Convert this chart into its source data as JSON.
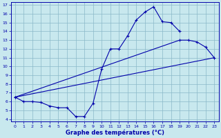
{
  "xlabel": "Graphe des températures (°C)",
  "background_color": "#c8e8ee",
  "grid_color": "#8ab8c8",
  "line_color": "#0000aa",
  "xmin": 0,
  "xmax": 23,
  "ymin": 4,
  "ymax": 17,
  "xticks": [
    0,
    1,
    2,
    3,
    4,
    5,
    6,
    7,
    8,
    9,
    10,
    11,
    12,
    13,
    14,
    15,
    16,
    17,
    18,
    19,
    20,
    21,
    22,
    23
  ],
  "yticks": [
    4,
    5,
    6,
    7,
    8,
    9,
    10,
    11,
    12,
    13,
    14,
    15,
    16,
    17
  ],
  "curve1_x": [
    0,
    1,
    2,
    3,
    4,
    5,
    6,
    7,
    8,
    9,
    10,
    11,
    12,
    13,
    14,
    15,
    16,
    17,
    18,
    19
  ],
  "curve1_y": [
    6.5,
    6.0,
    6.0,
    5.9,
    5.5,
    5.3,
    5.3,
    4.3,
    4.3,
    5.8,
    9.7,
    12.0,
    12.0,
    13.5,
    15.3,
    16.2,
    16.8,
    15.1,
    15.0,
    14.0
  ],
  "curve2_x": [
    0,
    23
  ],
  "curve2_y": [
    6.5,
    11.0
  ],
  "curve3_x": [
    0,
    19,
    20,
    21,
    22,
    23
  ],
  "curve3_y": [
    6.5,
    13.0,
    13.0,
    12.8,
    12.2,
    11.0
  ]
}
